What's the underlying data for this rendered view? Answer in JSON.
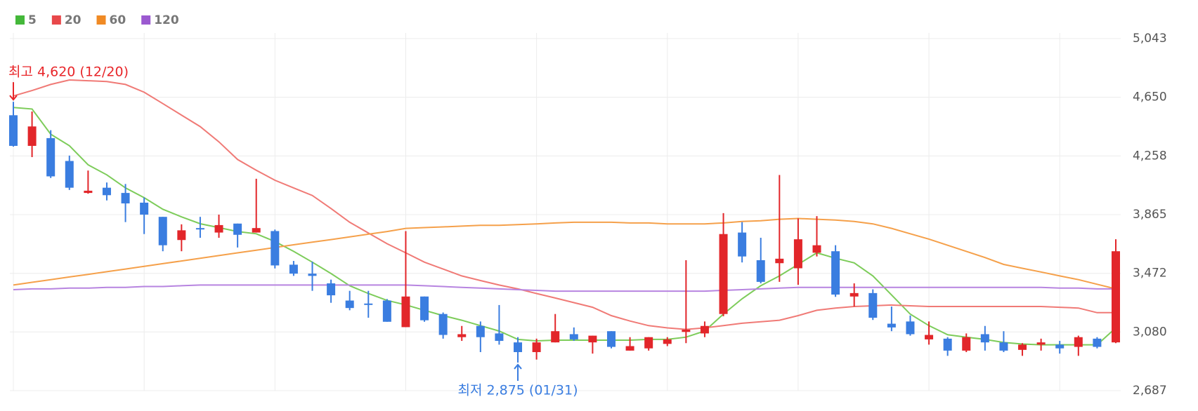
{
  "chart_data": {
    "type": "candlestick",
    "up_color": "#e2262a",
    "down_color": "#3a7de0",
    "ylim": [
      2687,
      5043
    ],
    "yticks": [
      {
        "value": 2687,
        "label": "2,687"
      },
      {
        "value": 3080,
        "label": "3,080"
      },
      {
        "value": 3472,
        "label": "3,472"
      },
      {
        "value": 3865,
        "label": "3,865"
      },
      {
        "value": 4258,
        "label": "4,258"
      },
      {
        "value": 4650,
        "label": "4,650"
      },
      {
        "value": 5043,
        "label": "5,043"
      }
    ],
    "grid": true,
    "legend": "top-left",
    "candles": {
      "open": [
        4530,
        4325,
        4377,
        4224,
        4010,
        4045,
        4010,
        3945,
        3850,
        3695,
        3775,
        3745,
        3805,
        3745,
        3755,
        3530,
        3470,
        3405,
        3290,
        3270,
        3290,
        3112,
        3317,
        3200,
        3045,
        3120,
        3070,
        3010,
        2945,
        3010,
        3065,
        3010,
        3085,
        2955,
        2970,
        3000,
        3080,
        3070,
        3200,
        3745,
        3560,
        3540,
        3506,
        3610,
        3620,
        3317,
        3340,
        3135,
        3150,
        3030,
        3035,
        2955,
        3065,
        3010,
        2960,
        2995,
        2995,
        2980,
        3035,
        3010
      ],
      "high": [
        4620,
        4555,
        4430,
        4260,
        4160,
        4080,
        4070,
        3980,
        3850,
        3800,
        3850,
        3865,
        3805,
        4105,
        3765,
        3555,
        3550,
        3430,
        3355,
        3355,
        3300,
        3755,
        3317,
        3210,
        3120,
        3150,
        3260,
        3045,
        3035,
        3200,
        3110,
        3055,
        3085,
        3045,
        3045,
        3045,
        3560,
        3150,
        3875,
        3815,
        3710,
        4130,
        3840,
        3855,
        3660,
        3405,
        3365,
        3250,
        3190,
        3150,
        3045,
        3070,
        3120,
        3085,
        3005,
        3035,
        3020,
        3055,
        3045,
        3700
      ],
      "low": [
        4320,
        4250,
        4110,
        4030,
        4005,
        3960,
        3815,
        3735,
        3620,
        3620,
        3710,
        3710,
        3645,
        3745,
        3505,
        3455,
        3355,
        3275,
        3225,
        3175,
        3148,
        3112,
        3148,
        3035,
        3020,
        2945,
        2995,
        2875,
        2895,
        3010,
        3020,
        2935,
        2970,
        2955,
        2955,
        2985,
        3005,
        3045,
        3185,
        3545,
        3405,
        3415,
        3395,
        3585,
        3315,
        3250,
        3160,
        3085,
        3055,
        2995,
        2920,
        2945,
        2955,
        2945,
        2920,
        2955,
        2935,
        2920,
        2970,
        3005
      ],
      "close": [
        4325,
        4455,
        4121,
        4045,
        4025,
        3995,
        3940,
        3865,
        3660,
        3760,
        3770,
        3795,
        3730,
        3775,
        3525,
        3470,
        3455,
        3325,
        3240,
        3265,
        3148,
        3317,
        3158,
        3060,
        3065,
        3045,
        3020,
        2945,
        3010,
        3085,
        3030,
        3055,
        2980,
        2985,
        3045,
        3030,
        3095,
        3120,
        3735,
        3585,
        3415,
        3570,
        3700,
        3660,
        3330,
        3340,
        3175,
        3110,
        3065,
        3060,
        2955,
        3045,
        3010,
        2955,
        2995,
        3010,
        2970,
        3045,
        2980,
        3620
      ]
    },
    "series": [
      {
        "name": "5",
        "color": "#44b83a",
        "line_color": "#7dcc5a",
        "values": [
          4582,
          4572,
          4403,
          4326,
          4198,
          4131,
          4044,
          3978,
          3901,
          3850,
          3804,
          3778,
          3752,
          3737,
          3685,
          3619,
          3547,
          3471,
          3389,
          3337,
          3291,
          3261,
          3225,
          3189,
          3158,
          3122,
          3086,
          3030,
          3020,
          3025,
          3025,
          3025,
          3025,
          3025,
          3030,
          3030,
          3045,
          3086,
          3199,
          3302,
          3389,
          3455,
          3532,
          3609,
          3573,
          3542,
          3455,
          3327,
          3199,
          3122,
          3061,
          3045,
          3030,
          3010,
          2999,
          2994,
          2994,
          2994,
          2994,
          3107
        ]
      },
      {
        "name": "20",
        "color": "#e8484a",
        "line_color": "#f07a76",
        "values": [
          4659,
          4695,
          4736,
          4766,
          4761,
          4756,
          4736,
          4684,
          4608,
          4531,
          4454,
          4352,
          4234,
          4162,
          4095,
          4044,
          3993,
          3906,
          3814,
          3742,
          3670,
          3609,
          3547,
          3501,
          3455,
          3424,
          3394,
          3368,
          3337,
          3307,
          3276,
          3245,
          3189,
          3153,
          3122,
          3107,
          3097,
          3107,
          3122,
          3138,
          3148,
          3158,
          3189,
          3225,
          3240,
          3250,
          3255,
          3260,
          3255,
          3250,
          3250,
          3250,
          3250,
          3250,
          3250,
          3250,
          3245,
          3240,
          3209,
          3209
        ]
      },
      {
        "name": "60",
        "color": "#f08a24",
        "line_color": "#f5a04a",
        "values": [
          3394,
          3412,
          3430,
          3448,
          3465,
          3483,
          3501,
          3519,
          3537,
          3555,
          3573,
          3591,
          3609,
          3627,
          3645,
          3663,
          3681,
          3698,
          3716,
          3734,
          3752,
          3773,
          3778,
          3783,
          3788,
          3793,
          3793,
          3798,
          3803,
          3809,
          3814,
          3814,
          3814,
          3809,
          3809,
          3803,
          3803,
          3803,
          3809,
          3819,
          3824,
          3834,
          3839,
          3834,
          3829,
          3819,
          3803,
          3773,
          3737,
          3701,
          3660,
          3619,
          3578,
          3532,
          3506,
          3481,
          3455,
          3430,
          3399,
          3368
        ]
      },
      {
        "name": "120",
        "color": "#9b59d0",
        "line_color": "#b784e0",
        "values": [
          3363,
          3368,
          3368,
          3373,
          3373,
          3378,
          3378,
          3384,
          3384,
          3389,
          3394,
          3394,
          3394,
          3394,
          3394,
          3394,
          3394,
          3394,
          3394,
          3394,
          3394,
          3394,
          3389,
          3384,
          3378,
          3373,
          3368,
          3363,
          3358,
          3353,
          3353,
          3353,
          3353,
          3353,
          3353,
          3353,
          3353,
          3353,
          3358,
          3363,
          3368,
          3373,
          3378,
          3378,
          3378,
          3378,
          3378,
          3378,
          3378,
          3378,
          3378,
          3378,
          3378,
          3378,
          3378,
          3378,
          3373,
          3373,
          3368,
          3368
        ]
      }
    ],
    "annotations": {
      "high": "최고 4,620 (12/20)",
      "low": "최저 2,875 (01/31)"
    }
  }
}
